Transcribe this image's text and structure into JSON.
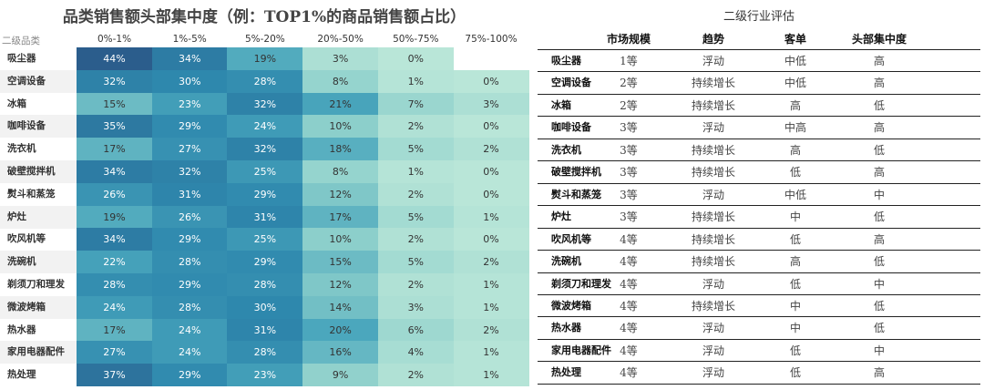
{
  "chart_data": {
    "type": "heatmap",
    "title": "品类销售额头部集中度（例：TOP1%的商品销售额占比）",
    "row_header": "二级品类",
    "columns": [
      "0%-1%",
      "1%-5%",
      "5%-20%",
      "20%-50%",
      "50%-75%",
      "75%-100%"
    ],
    "rows": [
      {
        "name": "吸尘器",
        "values": [
          "44%",
          "34%",
          "19%",
          "3%",
          "0%",
          ""
        ]
      },
      {
        "name": "空调设备",
        "values": [
          "32%",
          "30%",
          "28%",
          "8%",
          "1%",
          "0%"
        ]
      },
      {
        "name": "冰箱",
        "values": [
          "15%",
          "23%",
          "32%",
          "21%",
          "7%",
          "3%"
        ]
      },
      {
        "name": "咖啡设备",
        "values": [
          "35%",
          "29%",
          "24%",
          "10%",
          "2%",
          "0%"
        ]
      },
      {
        "name": "洗衣机",
        "values": [
          "17%",
          "27%",
          "32%",
          "18%",
          "5%",
          "2%"
        ]
      },
      {
        "name": "破壁搅拌机",
        "values": [
          "34%",
          "32%",
          "25%",
          "8%",
          "1%",
          "0%"
        ]
      },
      {
        "name": "熨斗和蒸笼",
        "values": [
          "26%",
          "31%",
          "29%",
          "12%",
          "2%",
          "0%"
        ]
      },
      {
        "name": "炉灶",
        "values": [
          "19%",
          "26%",
          "31%",
          "17%",
          "5%",
          "1%"
        ]
      },
      {
        "name": "吹风机等",
        "values": [
          "34%",
          "29%",
          "25%",
          "10%",
          "2%",
          "0%"
        ]
      },
      {
        "name": "洗碗机",
        "values": [
          "22%",
          "28%",
          "29%",
          "15%",
          "5%",
          "2%"
        ]
      },
      {
        "name": "剃须刀和理发",
        "values": [
          "28%",
          "29%",
          "28%",
          "12%",
          "2%",
          "1%"
        ]
      },
      {
        "name": "微波烤箱",
        "values": [
          "24%",
          "28%",
          "30%",
          "14%",
          "3%",
          "1%"
        ]
      },
      {
        "name": "热水器",
        "values": [
          "17%",
          "24%",
          "31%",
          "20%",
          "6%",
          "2%"
        ]
      },
      {
        "name": "家用电器配件",
        "values": [
          "27%",
          "24%",
          "28%",
          "16%",
          "4%",
          "1%"
        ]
      },
      {
        "name": "热处理",
        "values": [
          "37%",
          "29%",
          "23%",
          "9%",
          "2%",
          "1%"
        ]
      }
    ],
    "color_scale": [
      "#b9e6d8",
      "#8ccfcb",
      "#4ba7bd",
      "#2e88ad",
      "#2b5a8a"
    ]
  },
  "evaluation": {
    "title": "二级行业评估",
    "headers": [
      "市场规模",
      "趋势",
      "客单",
      "头部集中度"
    ],
    "rows": [
      [
        "吸尘器",
        "1等",
        "浮动",
        "中低",
        "高"
      ],
      [
        "空调设备",
        "2等",
        "持续增长",
        "中低",
        "高"
      ],
      [
        "冰箱",
        "2等",
        "持续增长",
        "高",
        "低"
      ],
      [
        "咖啡设备",
        "3等",
        "浮动",
        "中高",
        "高"
      ],
      [
        "洗衣机",
        "3等",
        "持续增长",
        "高",
        "低"
      ],
      [
        "破壁搅拌机",
        "3等",
        "持续增长",
        "低",
        "高"
      ],
      [
        "熨斗和蒸笼",
        "3等",
        "浮动",
        "中低",
        "中"
      ],
      [
        "炉灶",
        "3等",
        "持续增长",
        "中",
        "低"
      ],
      [
        "吹风机等",
        "4等",
        "持续增长",
        "低",
        "高"
      ],
      [
        "洗碗机",
        "4等",
        "持续增长",
        "高",
        "低"
      ],
      [
        "剃须刀和理发",
        "4等",
        "浮动",
        "低",
        "中"
      ],
      [
        "微波烤箱",
        "4等",
        "持续增长",
        "中",
        "低"
      ],
      [
        "热水器",
        "4等",
        "浮动",
        "中",
        "低"
      ],
      [
        "家用电器配件",
        "4等",
        "浮动",
        "低",
        "中"
      ],
      [
        "热处理",
        "4等",
        "浮动",
        "低",
        "高"
      ]
    ]
  }
}
